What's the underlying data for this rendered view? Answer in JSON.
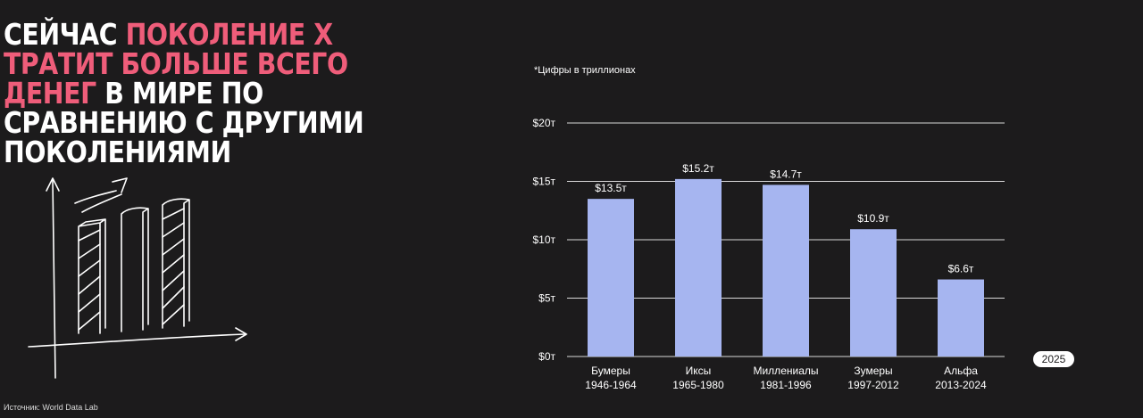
{
  "headline": {
    "part1": "СЕЙЧАС ",
    "highlight": "ПОКОЛЕНИЕ Х ТРАТИТ БОЛЬШЕ ВСЕГО ДЕНЕГ",
    "part2": " В МИРЕ ПО СРАВНЕНИЮ С ДРУГИМИ ПОКОЛЕНИЯМИ"
  },
  "note": "*Цифры в триллионах",
  "source": "Источник: World Data Lab",
  "year_badge": "2025",
  "colors": {
    "background": "#1c1b1c",
    "accent": "#ef5d7a",
    "bar": "#a6b5f0",
    "text": "#ffffff"
  },
  "decor": {
    "icon": "hand-drawn-growth-chart-icon"
  },
  "chart_data": {
    "type": "bar",
    "title": "",
    "xlabel": "",
    "ylabel": "",
    "categories": [
      [
        "Бумеры",
        "1946-1964"
      ],
      [
        "Иксы",
        "1965-1980"
      ],
      [
        "Миллениалы",
        "1981-1996"
      ],
      [
        "Зумеры",
        "1997-2012"
      ],
      [
        "Альфа",
        "2013-2024"
      ]
    ],
    "values": [
      13.5,
      15.2,
      14.7,
      10.9,
      6.6
    ],
    "value_labels": [
      "$13.5т",
      "$15.2т",
      "$14.7т",
      "$10.9т",
      "$6.6т"
    ],
    "y_ticks": [
      0,
      5,
      10,
      15,
      20
    ],
    "y_tick_labels": [
      "$0т",
      "$5т",
      "$10т",
      "$15т",
      "$20т"
    ],
    "ylim": [
      0,
      20
    ],
    "grid": true,
    "legend": "none"
  }
}
